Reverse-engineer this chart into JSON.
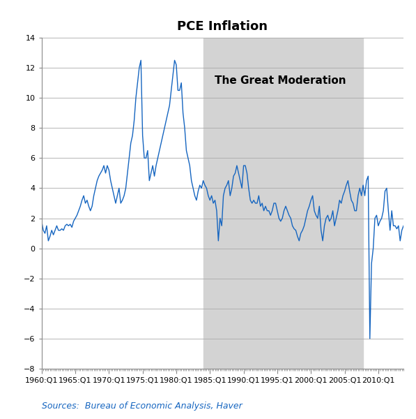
{
  "title": "PCE Inflation",
  "source_text": "Sources:  Bureau of Economic Analysis, Haver",
  "ylim": [
    -8,
    14
  ],
  "yticks": [
    -8,
    -6,
    -4,
    -2,
    0,
    2,
    4,
    6,
    8,
    10,
    12,
    14
  ],
  "great_moderation_start": 1984.0,
  "great_moderation_end": 2007.75,
  "great_moderation_label": "The Great Moderation",
  "line_color": "#1565C0",
  "line_width": 1.0,
  "shading_color": "#D3D3D3",
  "background_color": "#FFFFFF",
  "title_fontsize": 13,
  "tick_label_fontsize": 8,
  "source_fontsize": 9,
  "xtick_labels": [
    "1960:Q1",
    "1965:Q1",
    "1970:Q1",
    "1975:Q1",
    "1980:Q1",
    "1985:Q1",
    "1990:Q1",
    "1995:Q1",
    "2000:Q1",
    "2005:Q1",
    "2010:Q1"
  ],
  "xtick_positions": [
    1960.0,
    1965.0,
    1970.0,
    1975.0,
    1980.0,
    1985.0,
    1990.0,
    1995.0,
    2000.0,
    2005.0,
    2010.0
  ],
  "xmin": 1960.0,
  "xmax": 2013.75,
  "pce_data": [
    1.8,
    1.2,
    1.0,
    1.5,
    0.5,
    0.8,
    1.2,
    0.9,
    1.2,
    1.5,
    1.2,
    1.2,
    1.3,
    1.2,
    1.5,
    1.6,
    1.5,
    1.6,
    1.4,
    1.8,
    2.0,
    2.2,
    2.5,
    2.8,
    3.2,
    3.5,
    3.0,
    3.2,
    2.8,
    2.5,
    2.8,
    3.5,
    4.0,
    4.5,
    4.8,
    5.0,
    5.2,
    5.5,
    5.0,
    5.5,
    5.2,
    4.5,
    4.0,
    3.5,
    3.0,
    3.5,
    4.0,
    3.0,
    3.2,
    3.5,
    4.0,
    5.0,
    6.0,
    7.0,
    7.5,
    8.5,
    10.0,
    11.0,
    12.0,
    12.5,
    7.5,
    6.0,
    6.0,
    6.5,
    4.5,
    5.0,
    5.5,
    4.8,
    5.5,
    6.0,
    6.5,
    7.0,
    7.5,
    8.0,
    8.5,
    9.0,
    9.5,
    10.5,
    11.5,
    12.5,
    12.2,
    10.5,
    10.5,
    11.0,
    9.0,
    8.0,
    6.5,
    6.0,
    5.5,
    4.5,
    4.0,
    3.5,
    3.2,
    3.8,
    4.2,
    4.0,
    4.5,
    4.2,
    4.0,
    3.5,
    3.2,
    3.5,
    3.0,
    3.2,
    2.5,
    0.5,
    2.0,
    1.5,
    3.5,
    4.0,
    4.2,
    4.5,
    3.5,
    4.0,
    4.8,
    5.0,
    5.5,
    5.0,
    4.5,
    4.0,
    5.5,
    5.5,
    5.0,
    4.0,
    3.2,
    3.0,
    3.2,
    3.0,
    3.0,
    3.5,
    2.8,
    3.0,
    2.5,
    2.8,
    2.5,
    2.5,
    2.2,
    2.5,
    3.0,
    3.0,
    2.5,
    2.0,
    1.8,
    2.0,
    2.5,
    2.8,
    2.5,
    2.2,
    2.0,
    1.5,
    1.3,
    1.2,
    0.8,
    0.5,
    1.0,
    1.2,
    1.5,
    2.0,
    2.5,
    2.8,
    3.2,
    3.5,
    2.5,
    2.2,
    2.0,
    2.8,
    1.2,
    0.5,
    1.5,
    2.0,
    2.2,
    1.8,
    2.0,
    2.5,
    1.5,
    2.0,
    2.5,
    3.2,
    3.0,
    3.5,
    3.8,
    4.2,
    4.5,
    3.8,
    3.2,
    3.0,
    2.5,
    2.5,
    3.5,
    4.0,
    3.5,
    4.2,
    3.5,
    4.5,
    4.8,
    -6.0,
    -1.0,
    0.0,
    2.0,
    2.2,
    1.5,
    1.8,
    2.0,
    2.5,
    3.8,
    4.0,
    2.5,
    1.2,
    2.5,
    1.5,
    1.5,
    1.3,
    1.5,
    0.5,
    1.2,
    1.5
  ]
}
